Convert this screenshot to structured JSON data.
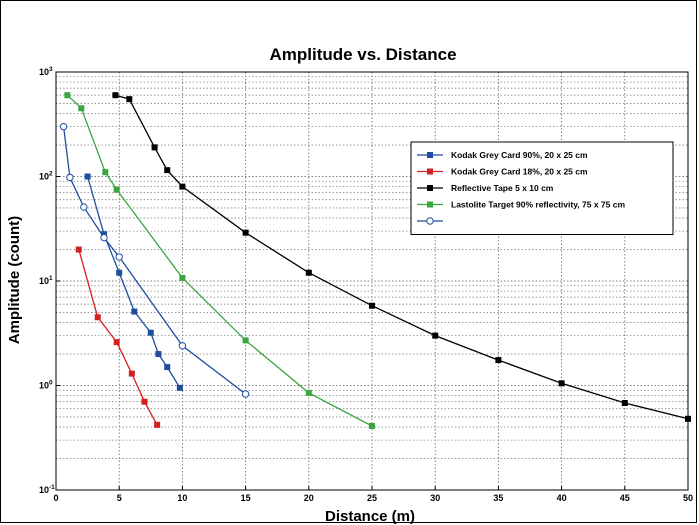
{
  "chart_data": {
    "type": "line",
    "title": "Amplitude vs. Distance",
    "xlabel": "Distance (m)",
    "ylabel": "Amplitude (count)",
    "xlim": [
      0,
      50
    ],
    "ylim": [
      0.1,
      1000
    ],
    "yscale": "log",
    "xticks": [
      "0",
      "5",
      "10",
      "15",
      "20",
      "25",
      "30",
      "35",
      "40",
      "45",
      "50"
    ],
    "yticks": [
      {
        "base": "10",
        "exp": "-1"
      },
      {
        "base": "10",
        "exp": "0"
      },
      {
        "base": "10",
        "exp": "1"
      },
      {
        "base": "10",
        "exp": "2"
      },
      {
        "base": "10",
        "exp": "3"
      }
    ],
    "grid": true,
    "legend_position": "upper-right",
    "series": [
      {
        "name": "Kodak Grey Card 90%, 20 x 25 cm",
        "color": "#1f4e9f",
        "marker": "square",
        "points": [
          [
            2.5,
            100
          ],
          [
            3.8,
            28
          ],
          [
            5,
            12
          ],
          [
            6.2,
            5.1
          ],
          [
            7.5,
            3.2
          ],
          [
            8.1,
            2.0
          ],
          [
            8.8,
            1.5
          ],
          [
            9.8,
            0.95
          ]
        ]
      },
      {
        "name": "Kodak Grey Card 18%, 20 x 25 cm",
        "color": "#d42020",
        "marker": "square",
        "points": [
          [
            1.8,
            20
          ],
          [
            3.3,
            4.5
          ],
          [
            4.8,
            2.6
          ],
          [
            6,
            1.3
          ],
          [
            7,
            0.7
          ],
          [
            8,
            0.42
          ]
        ]
      },
      {
        "name": "Reflective Tape 5 x 10 cm",
        "color": "#000000",
        "marker": "square",
        "points": [
          [
            4.7,
            600
          ],
          [
            5.8,
            550
          ],
          [
            7.8,
            190
          ],
          [
            8.8,
            115
          ],
          [
            10,
            80
          ],
          [
            15,
            29
          ],
          [
            20,
            12
          ],
          [
            25,
            5.8
          ],
          [
            30,
            3.0
          ],
          [
            35,
            1.75
          ],
          [
            40,
            1.05
          ],
          [
            45,
            0.68
          ],
          [
            50,
            0.48
          ]
        ]
      },
      {
        "name": "Lastolite Target 90% reflectivity, 75 x 75 cm",
        "color": "#3aa640",
        "marker": "square",
        "points": [
          [
            0.9,
            600
          ],
          [
            2,
            450
          ],
          [
            3.9,
            110
          ],
          [
            4.8,
            75
          ],
          [
            10,
            10.7
          ],
          [
            15,
            2.7
          ],
          [
            20,
            0.85
          ],
          [
            25,
            0.41
          ]
        ]
      },
      {
        "name": "",
        "color": "#1f4e9f",
        "marker": "circle-open",
        "points": [
          [
            0.6,
            300
          ],
          [
            1.1,
            98
          ],
          [
            2.2,
            51
          ],
          [
            3.8,
            26
          ],
          [
            5,
            17
          ],
          [
            10,
            2.4
          ],
          [
            15,
            0.83
          ]
        ]
      }
    ]
  }
}
